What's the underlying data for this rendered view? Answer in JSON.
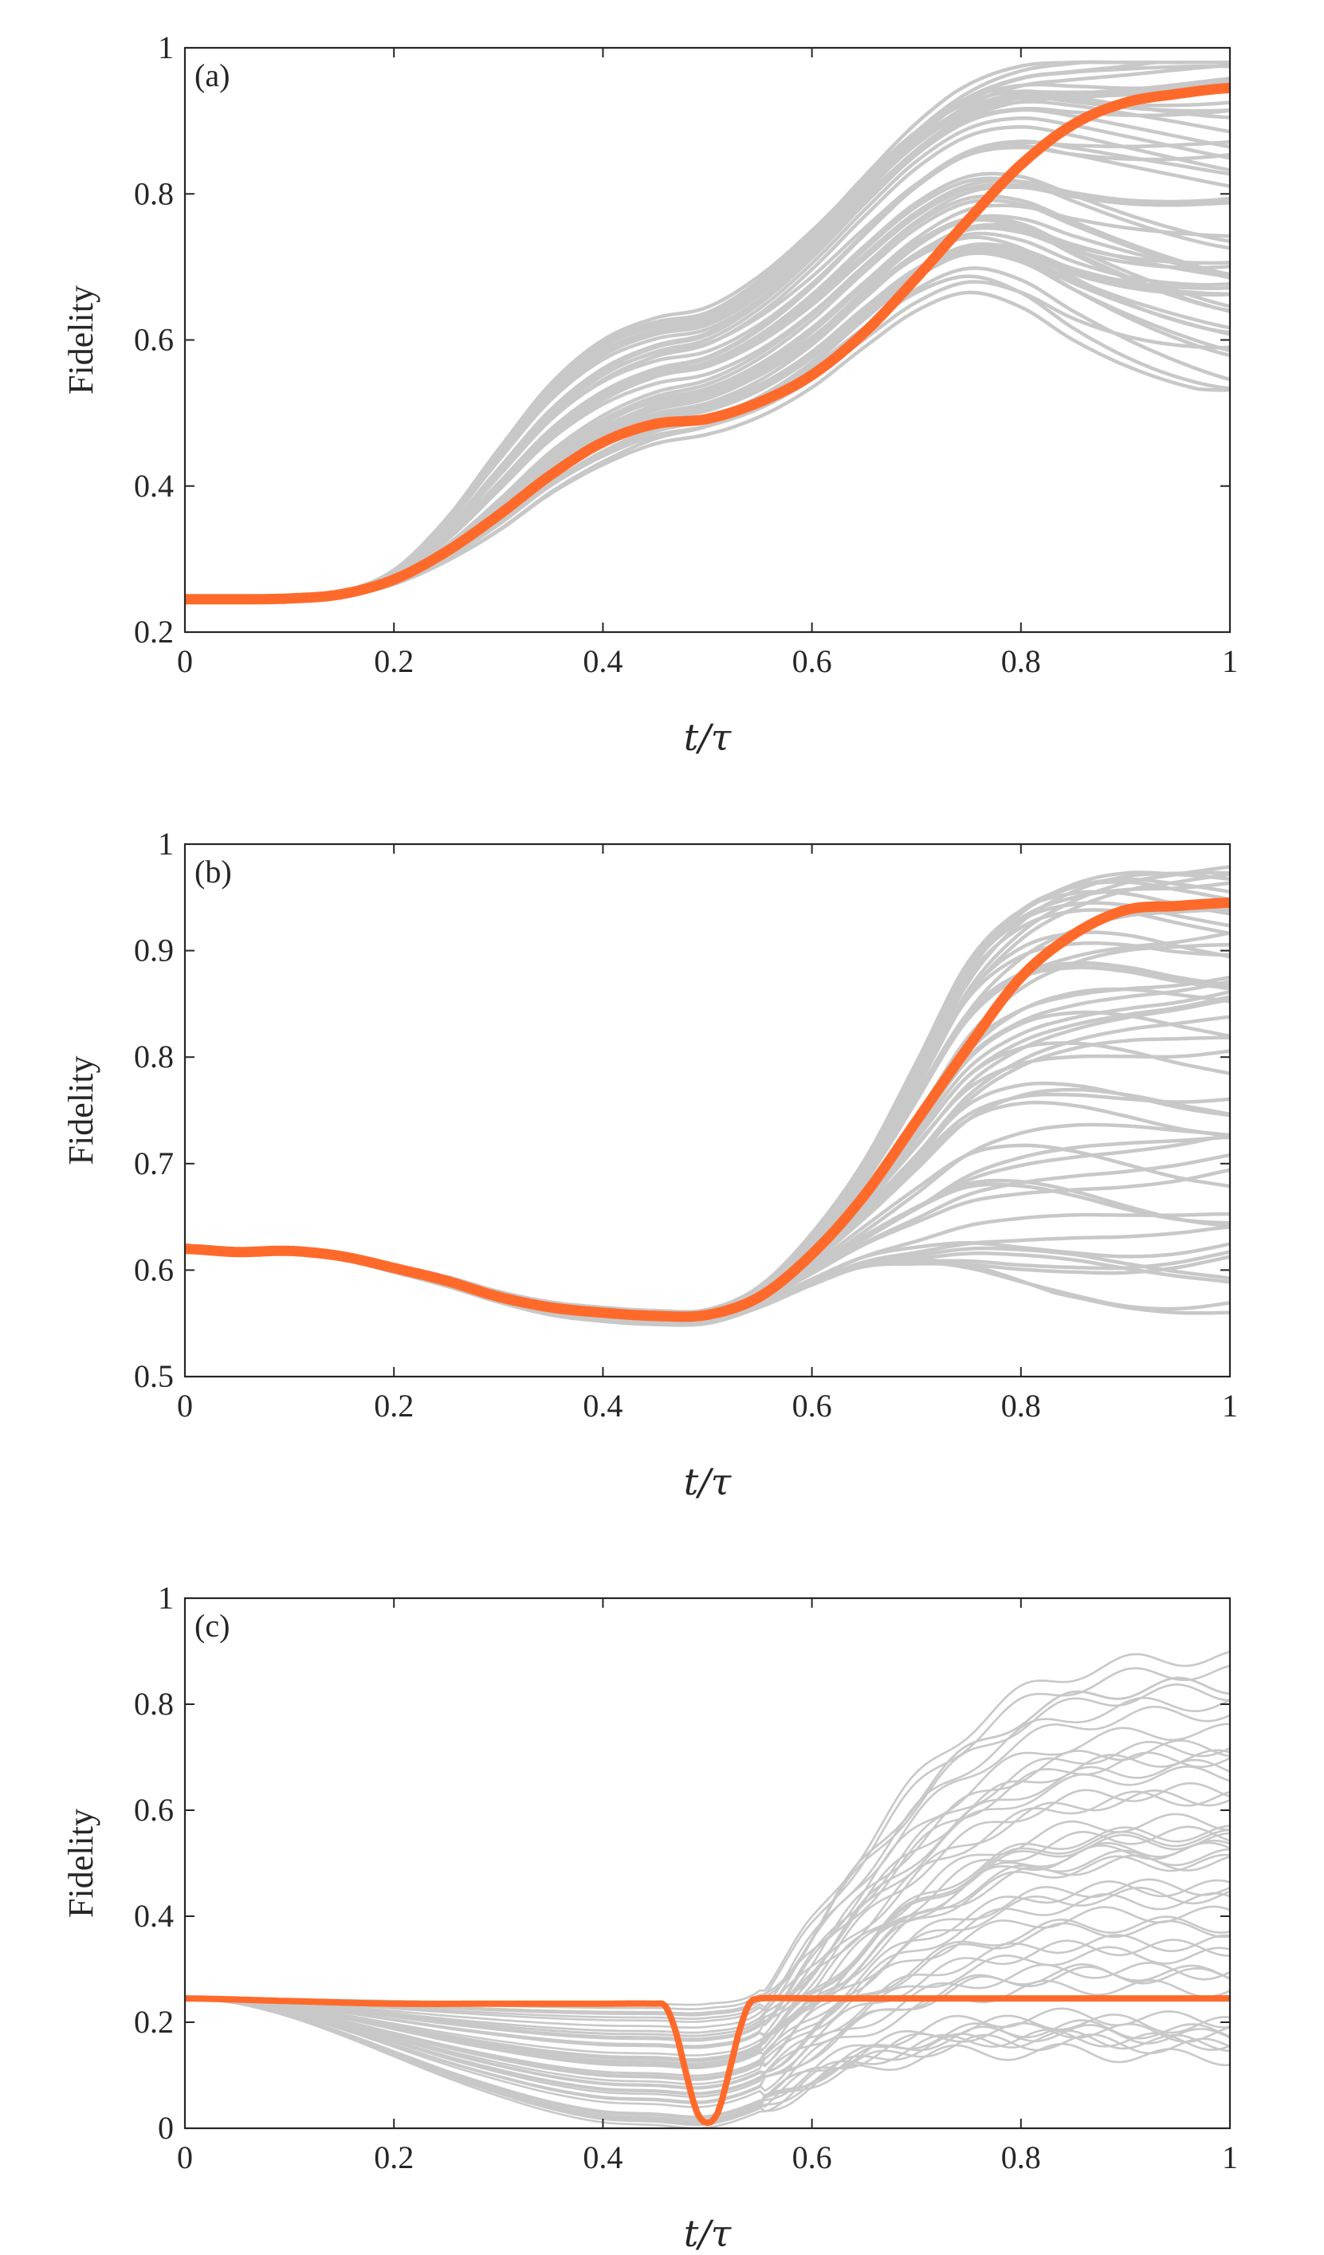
{
  "colors": {
    "primary_series": "#ff6a2b",
    "ensemble_series": "#c8c8c8",
    "axes": "#262626",
    "background": "#ffffff"
  },
  "chart_data": [
    {
      "type": "line",
      "panel_label": "(a)",
      "xlabel": "t/τ",
      "ylabel": "Fidelity",
      "xlim": [
        0,
        1
      ],
      "ylim": [
        0.2,
        1
      ],
      "xticks": [
        0,
        0.2,
        0.4,
        0.6,
        0.8,
        1
      ],
      "xtick_labels": [
        "0",
        "0.2",
        "0.4",
        "0.6",
        "0.8",
        "1"
      ],
      "yticks": [
        0.2,
        0.4,
        0.6,
        0.8,
        1
      ],
      "ytick_labels": [
        "0.2",
        "0.4",
        "0.6",
        "0.8",
        "1"
      ],
      "grid": false,
      "highlight_series": {
        "x": [
          0,
          0.05,
          0.1,
          0.15,
          0.2,
          0.25,
          0.3,
          0.35,
          0.4,
          0.45,
          0.5,
          0.55,
          0.6,
          0.65,
          0.7,
          0.75,
          0.8,
          0.85,
          0.9,
          0.95,
          1
        ],
        "y": [
          0.245,
          0.245,
          0.246,
          0.252,
          0.272,
          0.31,
          0.36,
          0.415,
          0.46,
          0.485,
          0.492,
          0.515,
          0.552,
          0.61,
          0.685,
          0.765,
          0.84,
          0.895,
          0.925,
          0.937,
          0.945
        ]
      },
      "ensemble": {
        "count": 50,
        "x": [
          0,
          0.05,
          0.1,
          0.15,
          0.2,
          0.25,
          0.3,
          0.35,
          0.4,
          0.45,
          0.5,
          0.55,
          0.6,
          0.65,
          0.7,
          0.75,
          0.8,
          0.85,
          0.9,
          0.95,
          1
        ],
        "upper": [
          0.245,
          0.245,
          0.246,
          0.255,
          0.285,
          0.355,
          0.45,
          0.54,
          0.6,
          0.63,
          0.645,
          0.69,
          0.755,
          0.83,
          0.9,
          0.95,
          0.975,
          0.98,
          0.98,
          0.98,
          0.98
        ],
        "lower": [
          0.245,
          0.245,
          0.246,
          0.25,
          0.265,
          0.295,
          0.335,
          0.385,
          0.425,
          0.455,
          0.47,
          0.495,
          0.535,
          0.59,
          0.64,
          0.665,
          0.645,
          0.6,
          0.565,
          0.54,
          0.525
        ]
      }
    },
    {
      "type": "line",
      "panel_label": "(b)",
      "xlabel": "t/τ",
      "ylabel": "Fidelity",
      "xlim": [
        0,
        1
      ],
      "ylim": [
        0.5,
        1
      ],
      "xticks": [
        0,
        0.2,
        0.4,
        0.6,
        0.8,
        1
      ],
      "xtick_labels": [
        "0",
        "0.2",
        "0.4",
        "0.6",
        "0.8",
        "1"
      ],
      "yticks": [
        0.5,
        0.6,
        0.7,
        0.8,
        0.9,
        1
      ],
      "ytick_labels": [
        "0.5",
        "0.6",
        "0.7",
        "0.8",
        "0.9",
        "1"
      ],
      "grid": false,
      "highlight_series": {
        "x": [
          0,
          0.05,
          0.1,
          0.15,
          0.2,
          0.25,
          0.3,
          0.35,
          0.4,
          0.45,
          0.5,
          0.55,
          0.6,
          0.65,
          0.7,
          0.75,
          0.8,
          0.85,
          0.9,
          0.95,
          1
        ],
        "y": [
          0.62,
          0.617,
          0.618,
          0.613,
          0.602,
          0.59,
          0.575,
          0.565,
          0.56,
          0.557,
          0.558,
          0.575,
          0.615,
          0.67,
          0.74,
          0.81,
          0.875,
          0.915,
          0.938,
          0.942,
          0.945
        ]
      },
      "ensemble": {
        "count": 50,
        "x": [
          0,
          0.05,
          0.1,
          0.15,
          0.2,
          0.25,
          0.3,
          0.35,
          0.4,
          0.45,
          0.5,
          0.55,
          0.6,
          0.65,
          0.7,
          0.75,
          0.8,
          0.85,
          0.9,
          0.95,
          1
        ],
        "upper": [
          0.62,
          0.618,
          0.619,
          0.615,
          0.605,
          0.594,
          0.58,
          0.57,
          0.565,
          0.562,
          0.563,
          0.585,
          0.635,
          0.705,
          0.8,
          0.9,
          0.955,
          0.98,
          0.99,
          0.99,
          0.99
        ],
        "lower": [
          0.62,
          0.615,
          0.615,
          0.61,
          0.598,
          0.585,
          0.57,
          0.558,
          0.552,
          0.549,
          0.55,
          0.565,
          0.585,
          0.6,
          0.6,
          0.595,
          0.585,
          0.575,
          0.565,
          0.56,
          0.56
        ]
      }
    },
    {
      "type": "line",
      "panel_label": "(c)",
      "xlabel": "t/τ",
      "ylabel": "Fidelity",
      "xlim": [
        0,
        1
      ],
      "ylim": [
        0,
        1
      ],
      "xticks": [
        0,
        0.2,
        0.4,
        0.6,
        0.8,
        1
      ],
      "xtick_labels": [
        "0",
        "0.2",
        "0.4",
        "0.6",
        "0.8",
        "1"
      ],
      "yticks": [
        0,
        0.2,
        0.4,
        0.6,
        0.8,
        1
      ],
      "ytick_labels": [
        "0",
        "0.2",
        "0.4",
        "0.6",
        "0.8",
        "1"
      ],
      "grid": false,
      "highlight_series": {
        "x": [
          0,
          0.1,
          0.2,
          0.3,
          0.4,
          0.45,
          0.46,
          0.47,
          0.48,
          0.49,
          0.5,
          0.51,
          0.52,
          0.53,
          0.54,
          0.55,
          0.6,
          0.7,
          0.8,
          0.9,
          1
        ],
        "y": [
          0.245,
          0.24,
          0.235,
          0.235,
          0.235,
          0.235,
          0.23,
          0.18,
          0.1,
          0.03,
          0.01,
          0.03,
          0.1,
          0.18,
          0.235,
          0.245,
          0.245,
          0.245,
          0.245,
          0.245,
          0.245
        ]
      },
      "ensemble": {
        "count": 50,
        "x": [
          0,
          0.05,
          0.1,
          0.15,
          0.2,
          0.25,
          0.3,
          0.35,
          0.4,
          0.45,
          0.5,
          0.55,
          0.6,
          0.65,
          0.7,
          0.75,
          0.8,
          0.85,
          0.9,
          0.95,
          1
        ],
        "upper": [
          0.245,
          0.245,
          0.245,
          0.245,
          0.245,
          0.245,
          0.245,
          0.245,
          0.245,
          0.245,
          0.245,
          0.27,
          0.4,
          0.55,
          0.68,
          0.78,
          0.85,
          0.89,
          0.91,
          0.92,
          0.92
        ],
        "lower": [
          0.245,
          0.235,
          0.21,
          0.175,
          0.135,
          0.095,
          0.06,
          0.03,
          0.01,
          0.005,
          0.0,
          0.03,
          0.08,
          0.11,
          0.13,
          0.14,
          0.14,
          0.14,
          0.135,
          0.13,
          0.13
        ]
      }
    }
  ]
}
